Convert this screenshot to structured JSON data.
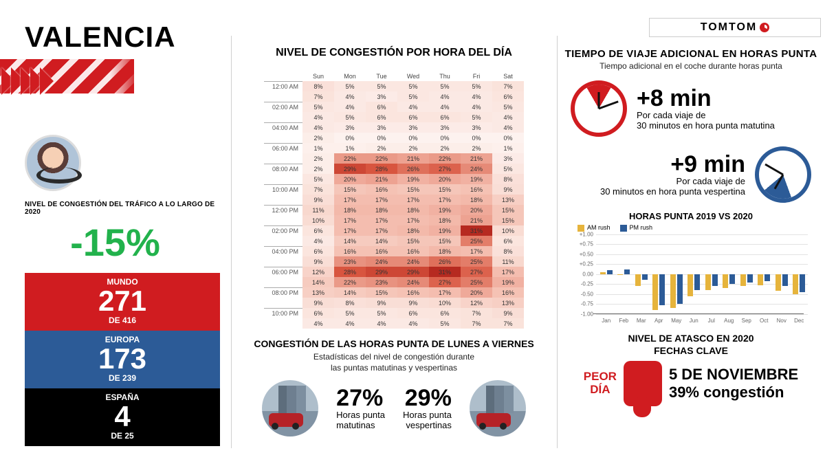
{
  "city": "VALENCIA",
  "logo": "TOMTOM",
  "left": {
    "label": "NIVEL DE CONGESTIÓN DEL TRÁFICO A LO LARGO DE 2020",
    "delta": "-15%",
    "ranks": [
      {
        "label": "MUNDO",
        "num": "271",
        "sub": "DE 416"
      },
      {
        "label": "EUROPA",
        "num": "173",
        "sub": "DE 239"
      },
      {
        "label": "ESPAÑA",
        "num": "4",
        "sub": "DE 25"
      }
    ]
  },
  "heatmap": {
    "title": "NIVEL DE CONGESTIÓN POR HORA DEL DÍA",
    "days": [
      "Sun",
      "Mon",
      "Tue",
      "Wed",
      "Thu",
      "Fri",
      "Sat"
    ],
    "hours": [
      "12:00 AM",
      "",
      "02:00 AM",
      "",
      "04:00 AM",
      "",
      "06:00 AM",
      "",
      "08:00 AM",
      "",
      "10:00 AM",
      "",
      "12:00 PM",
      "",
      "02:00 PM",
      "",
      "04:00 PM",
      "",
      "06:00 PM",
      "",
      "08:00 PM",
      "",
      "10:00 PM",
      ""
    ],
    "lined": [
      0,
      2,
      4,
      6,
      8,
      10,
      12,
      14,
      16,
      18,
      20,
      22
    ],
    "cells": [
      [
        8,
        5,
        5,
        5,
        5,
        5,
        7
      ],
      [
        7,
        4,
        3,
        5,
        4,
        4,
        6
      ],
      [
        5,
        4,
        6,
        4,
        4,
        4,
        5
      ],
      [
        4,
        5,
        6,
        6,
        6,
        5,
        4
      ],
      [
        4,
        3,
        3,
        3,
        3,
        3,
        4
      ],
      [
        2,
        0,
        0,
        0,
        0,
        0,
        0
      ],
      [
        1,
        1,
        2,
        2,
        2,
        2,
        1
      ],
      [
        2,
        22,
        22,
        21,
        22,
        21,
        3
      ],
      [
        2,
        29,
        28,
        26,
        27,
        24,
        5
      ],
      [
        5,
        20,
        21,
        19,
        20,
        19,
        8
      ],
      [
        7,
        15,
        16,
        15,
        15,
        16,
        9
      ],
      [
        9,
        17,
        17,
        17,
        17,
        18,
        13
      ],
      [
        11,
        18,
        18,
        18,
        19,
        20,
        15
      ],
      [
        10,
        17,
        17,
        17,
        18,
        21,
        15
      ],
      [
        6,
        17,
        17,
        18,
        19,
        31,
        10
      ],
      [
        4,
        14,
        14,
        15,
        15,
        25,
        6
      ],
      [
        6,
        16,
        16,
        16,
        18,
        17,
        8
      ],
      [
        9,
        23,
        24,
        24,
        26,
        25,
        11
      ],
      [
        12,
        28,
        29,
        29,
        31,
        27,
        17
      ],
      [
        14,
        22,
        23,
        24,
        27,
        25,
        19
      ],
      [
        13,
        14,
        15,
        16,
        17,
        20,
        16
      ],
      [
        9,
        8,
        9,
        9,
        10,
        12,
        13
      ],
      [
        6,
        5,
        5,
        6,
        6,
        7,
        9
      ],
      [
        4,
        4,
        4,
        4,
        5,
        7,
        7
      ]
    ],
    "color_stops": [
      [
        0,
        "#fdf2ef"
      ],
      [
        10,
        "#f9dcd3"
      ],
      [
        18,
        "#f3b9aa"
      ],
      [
        24,
        "#e68a77"
      ],
      [
        28,
        "#d8553f"
      ],
      [
        32,
        "#aa1c16"
      ]
    ]
  },
  "peaks": {
    "title": "CONGESTIÓN DE LAS HORAS PUNTA DE LUNES A VIERNES",
    "sub": "Estadísticas del nivel de congestión durante\nlas puntas matutinas y vespertinas",
    "am_pct": "27%",
    "am_l1": "Horas punta",
    "am_l2": "matutinas",
    "pm_pct": "29%",
    "pm_l1": "Horas punta",
    "pm_l2": "vespertinas"
  },
  "right": {
    "title": "TIEMPO DE VIAJE ADICIONAL EN HORAS PUNTA",
    "sub": "Tiempo adicional en el coche durante horas punta",
    "am_big": "+8 min",
    "am_l1": "Por cada viaje de",
    "am_l2": "30 minutos en hora punta matutina",
    "pm_big": "+9 min",
    "pm_l1": "Por cada viaje de",
    "pm_l2": "30 minutos en hora punta vespertina",
    "chart_title": "HORAS PUNTA 2019 VS 2020",
    "legend_am": "AM rush",
    "legend_pm": "PM rush",
    "months": [
      "Jan",
      "Feb",
      "Mar",
      "Apr",
      "May",
      "Jun",
      "Jul",
      "Aug",
      "Sep",
      "Oct",
      "Nov",
      "Dec"
    ],
    "yticks": [
      "+1.00",
      "+0.75",
      "+0.50",
      "+0.25",
      "0.00",
      "-0.25",
      "-0.50",
      "-0.75",
      "-1.00"
    ],
    "ylim": [
      -1.0,
      1.0
    ],
    "am_vals": [
      0.05,
      -0.02,
      -0.3,
      -0.9,
      -0.85,
      -0.55,
      -0.4,
      -0.35,
      -0.3,
      -0.28,
      -0.42,
      -0.5
    ],
    "pm_vals": [
      0.1,
      0.12,
      -0.15,
      -0.78,
      -0.75,
      -0.4,
      -0.3,
      -0.25,
      -0.22,
      -0.18,
      -0.3,
      -0.45
    ],
    "colors": {
      "am": "#e6b43c",
      "pm": "#2c5b97"
    },
    "sec2_l1": "NIVEL DE ATASCO EN 2020",
    "sec2_l2": "FECHAS CLAVE",
    "worst_tag1": "PEOR",
    "worst_tag2": "DÍA",
    "worst_date": "5 DE NOVIEMBRE",
    "worst_cong": "39% congestión"
  }
}
